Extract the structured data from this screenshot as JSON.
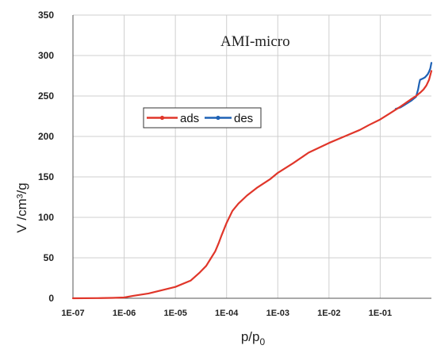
{
  "chart_data": {
    "type": "line",
    "annotation": "AMI-micro",
    "xlabel_main": "p/p",
    "xlabel_sub": "0",
    "ylabel": "V /cm³/g",
    "x_scale": "log",
    "xlim": [
      1e-07,
      1
    ],
    "ylim": [
      0,
      350
    ],
    "grid": true,
    "legend_position": "upper-left-inside",
    "xticks": [
      {
        "value": 1e-07,
        "label": "1E-07"
      },
      {
        "value": 1e-06,
        "label": "1E-06"
      },
      {
        "value": 1e-05,
        "label": "1E-05"
      },
      {
        "value": 0.0001,
        "label": "1E-04"
      },
      {
        "value": 0.001,
        "label": "1E-03"
      },
      {
        "value": 0.01,
        "label": "1E-02"
      },
      {
        "value": 0.1,
        "label": "1E-01"
      }
    ],
    "yticks": [
      {
        "value": 0,
        "label": "0"
      },
      {
        "value": 50,
        "label": "50"
      },
      {
        "value": 100,
        "label": "100"
      },
      {
        "value": 150,
        "label": "150"
      },
      {
        "value": 200,
        "label": "200"
      },
      {
        "value": 250,
        "label": "250"
      },
      {
        "value": 300,
        "label": "300"
      },
      {
        "value": 350,
        "label": "350"
      }
    ],
    "series": [
      {
        "name": "ads",
        "color": "#e0362a",
        "x": [
          1e-07,
          3e-07,
          6e-07,
          1e-06,
          1.5e-06,
          3e-06,
          1e-05,
          2e-05,
          3e-05,
          4e-05,
          5e-05,
          6e-05,
          7e-05,
          8e-05,
          0.0001,
          0.00013,
          0.00017,
          0.00025,
          0.0004,
          0.0007,
          0.001,
          0.002,
          0.004,
          0.01,
          0.02,
          0.04,
          0.06,
          0.1,
          0.15,
          0.25,
          0.4,
          0.5,
          0.6,
          0.7,
          0.8,
          0.9,
          1
        ],
        "y": [
          0,
          0.2,
          0.5,
          1,
          3,
          6,
          14,
          22,
          32,
          40,
          50,
          58,
          68,
          78,
          93,
          108,
          117,
          127,
          137,
          147,
          155,
          167,
          180,
          192,
          200,
          208,
          214,
          221,
          228,
          237,
          246,
          250,
          254,
          258,
          263,
          270,
          281
        ]
      },
      {
        "name": "des",
        "color": "#1f62b5",
        "x": [
          1,
          0.95,
          0.9,
          0.85,
          0.8,
          0.75,
          0.7,
          0.6,
          0.58,
          0.55,
          0.5,
          0.4,
          0.3,
          0.25,
          0.2
        ],
        "y": [
          291,
          284,
          280,
          277,
          275,
          273,
          272,
          270,
          266,
          258,
          249,
          244,
          239,
          236,
          234
        ]
      }
    ]
  }
}
